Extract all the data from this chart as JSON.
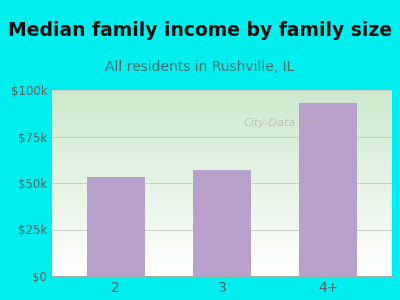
{
  "title": "Median family income by family size",
  "subtitle": "All residents in Rushville, IL",
  "categories": [
    "2",
    "3",
    "4+"
  ],
  "values": [
    53000,
    57000,
    93000
  ],
  "bar_color": "#b8a0cc",
  "title_fontsize": 13.5,
  "subtitle_fontsize": 10,
  "title_color": "#111111",
  "subtitle_color": "#4a7070",
  "tick_color": "#5a6060",
  "background_outer": "#00EEEE",
  "background_plot_top": "#cce8cc",
  "background_plot_bottom": "#ffffff",
  "ylim": [
    0,
    100000
  ],
  "yticks": [
    0,
    25000,
    50000,
    75000,
    100000
  ],
  "ytick_labels": [
    "$0",
    "$25k",
    "$50k",
    "$75k",
    "$100k"
  ],
  "watermark": "City-Data.com",
  "grid_color": "#cccccc"
}
